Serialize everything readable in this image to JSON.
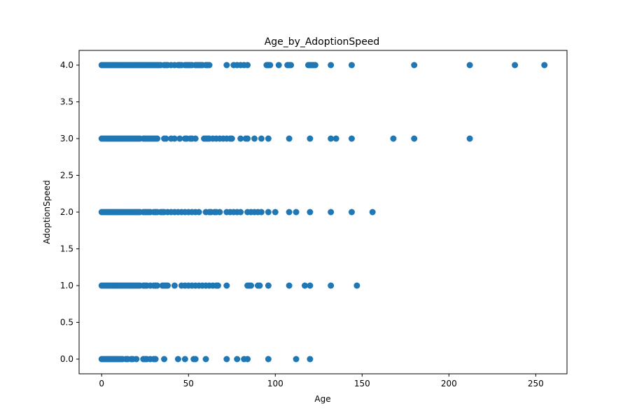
{
  "chart_data": {
    "type": "scatter",
    "title": "Age_by_AdoptionSpeed",
    "xlabel": "Age",
    "ylabel": "AdoptionSpeed",
    "xlim": [
      -13,
      268
    ],
    "ylim": [
      -0.2,
      4.2
    ],
    "xticks": [
      0,
      50,
      100,
      150,
      200,
      250
    ],
    "yticks": [
      0.0,
      0.5,
      1.0,
      1.5,
      2.0,
      2.5,
      3.0,
      3.5,
      4.0
    ],
    "xtick_labels": [
      "0",
      "50",
      "100",
      "150",
      "200",
      "250"
    ],
    "ytick_labels": [
      "0.0",
      "0.5",
      "1.0",
      "1.5",
      "2.0",
      "2.5",
      "3.0",
      "3.5",
      "4.0"
    ],
    "grid": false,
    "legend": "none",
    "marker_color": "#1f77b4",
    "points": [
      {
        "x": 0,
        "y": 0
      },
      {
        "x": 1,
        "y": 0
      },
      {
        "x": 2,
        "y": 0
      },
      {
        "x": 3,
        "y": 0
      },
      {
        "x": 4,
        "y": 0
      },
      {
        "x": 5,
        "y": 0
      },
      {
        "x": 6,
        "y": 0
      },
      {
        "x": 7,
        "y": 0
      },
      {
        "x": 8,
        "y": 0
      },
      {
        "x": 9,
        "y": 0
      },
      {
        "x": 10,
        "y": 0
      },
      {
        "x": 11,
        "y": 0
      },
      {
        "x": 12,
        "y": 0
      },
      {
        "x": 14,
        "y": 0
      },
      {
        "x": 15,
        "y": 0
      },
      {
        "x": 17,
        "y": 0
      },
      {
        "x": 18,
        "y": 0
      },
      {
        "x": 20,
        "y": 0
      },
      {
        "x": 24,
        "y": 0
      },
      {
        "x": 25,
        "y": 0
      },
      {
        "x": 26,
        "y": 0
      },
      {
        "x": 28,
        "y": 0
      },
      {
        "x": 30,
        "y": 0
      },
      {
        "x": 31,
        "y": 0
      },
      {
        "x": 36,
        "y": 0
      },
      {
        "x": 44,
        "y": 0
      },
      {
        "x": 48,
        "y": 0
      },
      {
        "x": 53,
        "y": 0
      },
      {
        "x": 54,
        "y": 0
      },
      {
        "x": 60,
        "y": 0
      },
      {
        "x": 72,
        "y": 0
      },
      {
        "x": 78,
        "y": 0
      },
      {
        "x": 82,
        "y": 0
      },
      {
        "x": 84,
        "y": 0
      },
      {
        "x": 96,
        "y": 0
      },
      {
        "x": 112,
        "y": 0
      },
      {
        "x": 120,
        "y": 0
      },
      {
        "x": 0,
        "y": 1
      },
      {
        "x": 1,
        "y": 1
      },
      {
        "x": 2,
        "y": 1
      },
      {
        "x": 3,
        "y": 1
      },
      {
        "x": 4,
        "y": 1
      },
      {
        "x": 5,
        "y": 1
      },
      {
        "x": 6,
        "y": 1
      },
      {
        "x": 7,
        "y": 1
      },
      {
        "x": 8,
        "y": 1
      },
      {
        "x": 9,
        "y": 1
      },
      {
        "x": 10,
        "y": 1
      },
      {
        "x": 11,
        "y": 1
      },
      {
        "x": 12,
        "y": 1
      },
      {
        "x": 13,
        "y": 1
      },
      {
        "x": 14,
        "y": 1
      },
      {
        "x": 15,
        "y": 1
      },
      {
        "x": 16,
        "y": 1
      },
      {
        "x": 17,
        "y": 1
      },
      {
        "x": 18,
        "y": 1
      },
      {
        "x": 19,
        "y": 1
      },
      {
        "x": 20,
        "y": 1
      },
      {
        "x": 21,
        "y": 1
      },
      {
        "x": 22,
        "y": 1
      },
      {
        "x": 24,
        "y": 1
      },
      {
        "x": 25,
        "y": 1
      },
      {
        "x": 26,
        "y": 1
      },
      {
        "x": 28,
        "y": 1
      },
      {
        "x": 30,
        "y": 1
      },
      {
        "x": 31,
        "y": 1
      },
      {
        "x": 32,
        "y": 1
      },
      {
        "x": 35,
        "y": 1
      },
      {
        "x": 36,
        "y": 1
      },
      {
        "x": 37,
        "y": 1
      },
      {
        "x": 38,
        "y": 1
      },
      {
        "x": 42,
        "y": 1
      },
      {
        "x": 46,
        "y": 1
      },
      {
        "x": 48,
        "y": 1
      },
      {
        "x": 50,
        "y": 1
      },
      {
        "x": 52,
        "y": 1
      },
      {
        "x": 54,
        "y": 1
      },
      {
        "x": 56,
        "y": 1
      },
      {
        "x": 58,
        "y": 1
      },
      {
        "x": 60,
        "y": 1
      },
      {
        "x": 62,
        "y": 1
      },
      {
        "x": 64,
        "y": 1
      },
      {
        "x": 66,
        "y": 1
      },
      {
        "x": 67,
        "y": 1
      },
      {
        "x": 72,
        "y": 1
      },
      {
        "x": 84,
        "y": 1
      },
      {
        "x": 85,
        "y": 1
      },
      {
        "x": 86,
        "y": 1
      },
      {
        "x": 90,
        "y": 1
      },
      {
        "x": 91,
        "y": 1
      },
      {
        "x": 96,
        "y": 1
      },
      {
        "x": 108,
        "y": 1
      },
      {
        "x": 117,
        "y": 1
      },
      {
        "x": 120,
        "y": 1
      },
      {
        "x": 132,
        "y": 1
      },
      {
        "x": 147,
        "y": 1
      },
      {
        "x": 0,
        "y": 2
      },
      {
        "x": 1,
        "y": 2
      },
      {
        "x": 2,
        "y": 2
      },
      {
        "x": 3,
        "y": 2
      },
      {
        "x": 4,
        "y": 2
      },
      {
        "x": 5,
        "y": 2
      },
      {
        "x": 6,
        "y": 2
      },
      {
        "x": 7,
        "y": 2
      },
      {
        "x": 8,
        "y": 2
      },
      {
        "x": 9,
        "y": 2
      },
      {
        "x": 10,
        "y": 2
      },
      {
        "x": 11,
        "y": 2
      },
      {
        "x": 12,
        "y": 2
      },
      {
        "x": 13,
        "y": 2
      },
      {
        "x": 14,
        "y": 2
      },
      {
        "x": 15,
        "y": 2
      },
      {
        "x": 16,
        "y": 2
      },
      {
        "x": 17,
        "y": 2
      },
      {
        "x": 18,
        "y": 2
      },
      {
        "x": 19,
        "y": 2
      },
      {
        "x": 20,
        "y": 2
      },
      {
        "x": 21,
        "y": 2
      },
      {
        "x": 22,
        "y": 2
      },
      {
        "x": 24,
        "y": 2
      },
      {
        "x": 25,
        "y": 2
      },
      {
        "x": 26,
        "y": 2
      },
      {
        "x": 27,
        "y": 2
      },
      {
        "x": 28,
        "y": 2
      },
      {
        "x": 30,
        "y": 2
      },
      {
        "x": 31,
        "y": 2
      },
      {
        "x": 32,
        "y": 2
      },
      {
        "x": 34,
        "y": 2
      },
      {
        "x": 35,
        "y": 2
      },
      {
        "x": 36,
        "y": 2
      },
      {
        "x": 38,
        "y": 2
      },
      {
        "x": 40,
        "y": 2
      },
      {
        "x": 42,
        "y": 2
      },
      {
        "x": 44,
        "y": 2
      },
      {
        "x": 46,
        "y": 2
      },
      {
        "x": 48,
        "y": 2
      },
      {
        "x": 50,
        "y": 2
      },
      {
        "x": 52,
        "y": 2
      },
      {
        "x": 54,
        "y": 2
      },
      {
        "x": 56,
        "y": 2
      },
      {
        "x": 60,
        "y": 2
      },
      {
        "x": 62,
        "y": 2
      },
      {
        "x": 63,
        "y": 2
      },
      {
        "x": 65,
        "y": 2
      },
      {
        "x": 66,
        "y": 2
      },
      {
        "x": 68,
        "y": 2
      },
      {
        "x": 72,
        "y": 2
      },
      {
        "x": 74,
        "y": 2
      },
      {
        "x": 76,
        "y": 2
      },
      {
        "x": 78,
        "y": 2
      },
      {
        "x": 80,
        "y": 2
      },
      {
        "x": 84,
        "y": 2
      },
      {
        "x": 86,
        "y": 2
      },
      {
        "x": 88,
        "y": 2
      },
      {
        "x": 90,
        "y": 2
      },
      {
        "x": 92,
        "y": 2
      },
      {
        "x": 96,
        "y": 2
      },
      {
        "x": 100,
        "y": 2
      },
      {
        "x": 108,
        "y": 2
      },
      {
        "x": 112,
        "y": 2
      },
      {
        "x": 120,
        "y": 2
      },
      {
        "x": 132,
        "y": 2
      },
      {
        "x": 144,
        "y": 2
      },
      {
        "x": 156,
        "y": 2
      },
      {
        "x": 0,
        "y": 3
      },
      {
        "x": 1,
        "y": 3
      },
      {
        "x": 2,
        "y": 3
      },
      {
        "x": 3,
        "y": 3
      },
      {
        "x": 4,
        "y": 3
      },
      {
        "x": 5,
        "y": 3
      },
      {
        "x": 6,
        "y": 3
      },
      {
        "x": 7,
        "y": 3
      },
      {
        "x": 8,
        "y": 3
      },
      {
        "x": 9,
        "y": 3
      },
      {
        "x": 10,
        "y": 3
      },
      {
        "x": 11,
        "y": 3
      },
      {
        "x": 12,
        "y": 3
      },
      {
        "x": 13,
        "y": 3
      },
      {
        "x": 14,
        "y": 3
      },
      {
        "x": 15,
        "y": 3
      },
      {
        "x": 16,
        "y": 3
      },
      {
        "x": 17,
        "y": 3
      },
      {
        "x": 18,
        "y": 3
      },
      {
        "x": 19,
        "y": 3
      },
      {
        "x": 20,
        "y": 3
      },
      {
        "x": 21,
        "y": 3
      },
      {
        "x": 22,
        "y": 3
      },
      {
        "x": 24,
        "y": 3
      },
      {
        "x": 25,
        "y": 3
      },
      {
        "x": 26,
        "y": 3
      },
      {
        "x": 27,
        "y": 3
      },
      {
        "x": 28,
        "y": 3
      },
      {
        "x": 29,
        "y": 3
      },
      {
        "x": 30,
        "y": 3
      },
      {
        "x": 31,
        "y": 3
      },
      {
        "x": 32,
        "y": 3
      },
      {
        "x": 36,
        "y": 3
      },
      {
        "x": 37,
        "y": 3
      },
      {
        "x": 40,
        "y": 3
      },
      {
        "x": 42,
        "y": 3
      },
      {
        "x": 45,
        "y": 3
      },
      {
        "x": 48,
        "y": 3
      },
      {
        "x": 49,
        "y": 3
      },
      {
        "x": 51,
        "y": 3
      },
      {
        "x": 52,
        "y": 3
      },
      {
        "x": 54,
        "y": 3
      },
      {
        "x": 59,
        "y": 3
      },
      {
        "x": 60,
        "y": 3
      },
      {
        "x": 61,
        "y": 3
      },
      {
        "x": 62,
        "y": 3
      },
      {
        "x": 64,
        "y": 3
      },
      {
        "x": 66,
        "y": 3
      },
      {
        "x": 68,
        "y": 3
      },
      {
        "x": 70,
        "y": 3
      },
      {
        "x": 72,
        "y": 3
      },
      {
        "x": 74,
        "y": 3
      },
      {
        "x": 75,
        "y": 3
      },
      {
        "x": 80,
        "y": 3
      },
      {
        "x": 83,
        "y": 3
      },
      {
        "x": 84,
        "y": 3
      },
      {
        "x": 88,
        "y": 3
      },
      {
        "x": 92,
        "y": 3
      },
      {
        "x": 96,
        "y": 3
      },
      {
        "x": 108,
        "y": 3
      },
      {
        "x": 120,
        "y": 3
      },
      {
        "x": 132,
        "y": 3
      },
      {
        "x": 135,
        "y": 3
      },
      {
        "x": 144,
        "y": 3
      },
      {
        "x": 168,
        "y": 3
      },
      {
        "x": 180,
        "y": 3
      },
      {
        "x": 212,
        "y": 3
      },
      {
        "x": 0,
        "y": 4
      },
      {
        "x": 1,
        "y": 4
      },
      {
        "x": 2,
        "y": 4
      },
      {
        "x": 3,
        "y": 4
      },
      {
        "x": 4,
        "y": 4
      },
      {
        "x": 5,
        "y": 4
      },
      {
        "x": 6,
        "y": 4
      },
      {
        "x": 7,
        "y": 4
      },
      {
        "x": 8,
        "y": 4
      },
      {
        "x": 9,
        "y": 4
      },
      {
        "x": 10,
        "y": 4
      },
      {
        "x": 11,
        "y": 4
      },
      {
        "x": 12,
        "y": 4
      },
      {
        "x": 13,
        "y": 4
      },
      {
        "x": 14,
        "y": 4
      },
      {
        "x": 15,
        "y": 4
      },
      {
        "x": 16,
        "y": 4
      },
      {
        "x": 17,
        "y": 4
      },
      {
        "x": 18,
        "y": 4
      },
      {
        "x": 19,
        "y": 4
      },
      {
        "x": 20,
        "y": 4
      },
      {
        "x": 21,
        "y": 4
      },
      {
        "x": 22,
        "y": 4
      },
      {
        "x": 23,
        "y": 4
      },
      {
        "x": 24,
        "y": 4
      },
      {
        "x": 25,
        "y": 4
      },
      {
        "x": 26,
        "y": 4
      },
      {
        "x": 27,
        "y": 4
      },
      {
        "x": 28,
        "y": 4
      },
      {
        "x": 29,
        "y": 4
      },
      {
        "x": 30,
        "y": 4
      },
      {
        "x": 31,
        "y": 4
      },
      {
        "x": 32,
        "y": 4
      },
      {
        "x": 33,
        "y": 4
      },
      {
        "x": 34,
        "y": 4
      },
      {
        "x": 36,
        "y": 4
      },
      {
        "x": 37,
        "y": 4
      },
      {
        "x": 38,
        "y": 4
      },
      {
        "x": 40,
        "y": 4
      },
      {
        "x": 42,
        "y": 4
      },
      {
        "x": 44,
        "y": 4
      },
      {
        "x": 45,
        "y": 4
      },
      {
        "x": 46,
        "y": 4
      },
      {
        "x": 48,
        "y": 4
      },
      {
        "x": 49,
        "y": 4
      },
      {
        "x": 50,
        "y": 4
      },
      {
        "x": 51,
        "y": 4
      },
      {
        "x": 52,
        "y": 4
      },
      {
        "x": 54,
        "y": 4
      },
      {
        "x": 55,
        "y": 4
      },
      {
        "x": 56,
        "y": 4
      },
      {
        "x": 57,
        "y": 4
      },
      {
        "x": 58,
        "y": 4
      },
      {
        "x": 60,
        "y": 4
      },
      {
        "x": 61,
        "y": 4
      },
      {
        "x": 62,
        "y": 4
      },
      {
        "x": 72,
        "y": 4
      },
      {
        "x": 76,
        "y": 4
      },
      {
        "x": 78,
        "y": 4
      },
      {
        "x": 80,
        "y": 4
      },
      {
        "x": 82,
        "y": 4
      },
      {
        "x": 84,
        "y": 4
      },
      {
        "x": 95,
        "y": 4
      },
      {
        "x": 96,
        "y": 4
      },
      {
        "x": 97,
        "y": 4
      },
      {
        "x": 102,
        "y": 4
      },
      {
        "x": 107,
        "y": 4
      },
      {
        "x": 108,
        "y": 4
      },
      {
        "x": 109,
        "y": 4
      },
      {
        "x": 119,
        "y": 4
      },
      {
        "x": 120,
        "y": 4
      },
      {
        "x": 121,
        "y": 4
      },
      {
        "x": 122,
        "y": 4
      },
      {
        "x": 123,
        "y": 4
      },
      {
        "x": 132,
        "y": 4
      },
      {
        "x": 144,
        "y": 4
      },
      {
        "x": 180,
        "y": 4
      },
      {
        "x": 212,
        "y": 4
      },
      {
        "x": 238,
        "y": 4
      },
      {
        "x": 255,
        "y": 4
      }
    ]
  }
}
